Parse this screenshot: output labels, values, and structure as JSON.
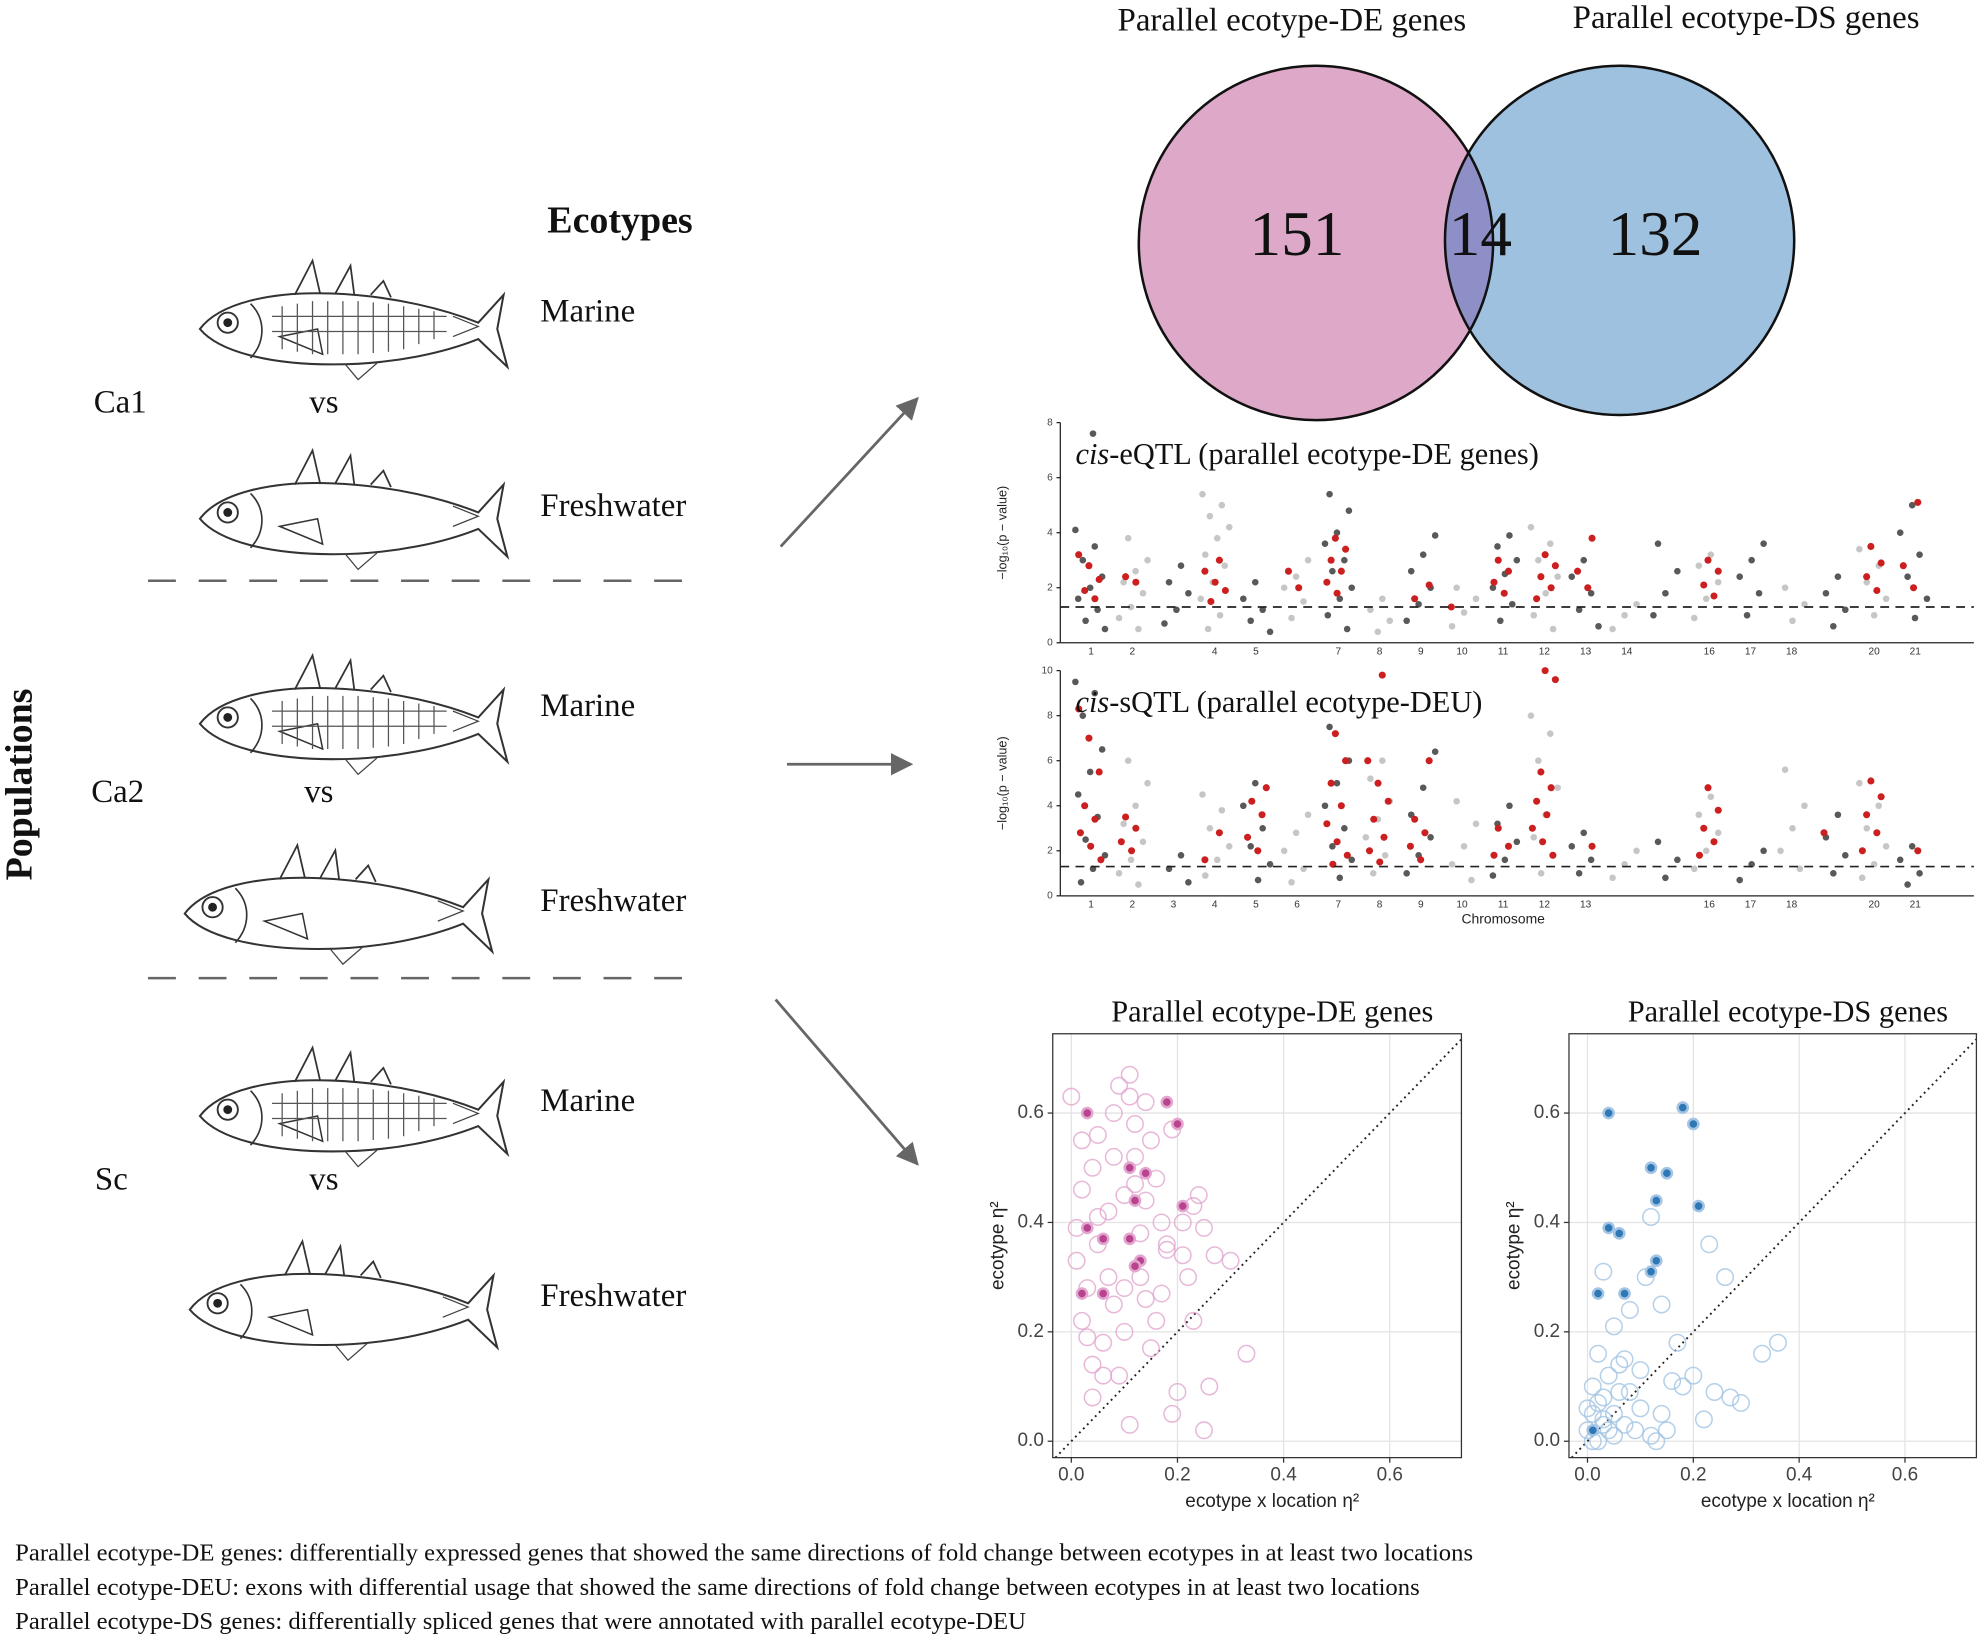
{
  "diagram": {
    "ecotypes_title": "Ecotypes",
    "populations_title": "Populations",
    "rows": [
      {
        "population": "Ca1",
        "vs": "vs",
        "marine": "Marine",
        "freshwater": "Freshwater"
      },
      {
        "population": "Ca2",
        "vs": "vs",
        "marine": "Marine",
        "freshwater": "Freshwater"
      },
      {
        "population": "Sc",
        "vs": "vs",
        "marine": "Marine",
        "freshwater": "Freshwater"
      }
    ]
  },
  "venn": {
    "left_label": "Parallel ecotype-DE genes",
    "right_label": "Parallel ecotype-DS genes",
    "left_only": 151,
    "overlap": 14,
    "right_only": 132
  },
  "chart_data": [
    {
      "type": "manhattan",
      "title_prefix": "cis",
      "title": "-eQTL (parallel ecotype-DE genes)",
      "y_label": "−log₁₀(p − value)",
      "categories": [
        "1",
        "2",
        null,
        "4",
        "5",
        null,
        "7",
        "8",
        "9",
        "10",
        "11",
        "12",
        "13",
        "14",
        null,
        "16",
        "17",
        "18",
        null,
        "20",
        "21"
      ],
      "values": [
        [
          4.1,
          3.5,
          3.0,
          2.4,
          2.0,
          1.6,
          1.2,
          0.8,
          0.5,
          7.6
        ],
        [
          3.8,
          3.0,
          2.6,
          2.2,
          1.8,
          1.3,
          0.9,
          0.5
        ],
        [
          2.8,
          2.2,
          1.8,
          1.2,
          0.7
        ],
        [
          5.4,
          5.0,
          4.6,
          4.2,
          3.8,
          3.2,
          2.8,
          2.2,
          1.6,
          1.0,
          0.5
        ],
        [
          2.2,
          1.6,
          1.2,
          0.8,
          0.4
        ],
        [
          3.0,
          2.4,
          2.0,
          1.5,
          0.9
        ],
        [
          5.4,
          4.8,
          4.0,
          3.6,
          3.0,
          2.6,
          2.0,
          1.6,
          1.0,
          0.5
        ],
        [
          1.6,
          1.2,
          0.8,
          0.4
        ],
        [
          3.9,
          3.2,
          2.6,
          2.0,
          1.4,
          0.8
        ],
        [
          2.0,
          1.6,
          1.1,
          0.6
        ],
        [
          3.9,
          3.5,
          3.0,
          2.5,
          2.0,
          1.4,
          0.8
        ],
        [
          4.2,
          3.6,
          3.0,
          2.4,
          1.8,
          1.0,
          0.5
        ],
        [
          3.0,
          2.4,
          1.8,
          1.2,
          0.6
        ],
        [
          1.4,
          1.0,
          0.5
        ],
        [
          3.6,
          2.6,
          1.8,
          1.0
        ],
        [
          3.2,
          2.8,
          2.2,
          1.6,
          0.9
        ],
        [
          3.6,
          3.0,
          2.4,
          1.8,
          1.0
        ],
        [
          2.0,
          1.4,
          0.8
        ],
        [
          2.4,
          1.8,
          1.2,
          0.6
        ],
        [
          3.4,
          2.8,
          2.2,
          1.6,
          1.0
        ],
        [
          5.0,
          4.0,
          3.2,
          2.4,
          1.6,
          0.9
        ]
      ],
      "highlight_values": [
        [
          3.2,
          2.8,
          2.3,
          1.9,
          1.6
        ],
        [
          2.4,
          2.2
        ],
        [],
        [
          3.0,
          2.6,
          2.2,
          1.9,
          1.5
        ],
        [],
        [
          2.6,
          2.0
        ],
        [
          3.8,
          3.4,
          3.0,
          2.6,
          2.2,
          1.8
        ],
        [],
        [
          2.1,
          1.6
        ],
        [
          1.3
        ],
        [
          3.0,
          2.6,
          2.2,
          1.8
        ],
        [
          3.2,
          2.8,
          2.4,
          2.0,
          1.6
        ],
        [
          3.8,
          2.6,
          2.0
        ],
        [],
        [],
        [
          3.0,
          2.6,
          2.1,
          1.7
        ],
        [],
        [],
        [],
        [
          3.5,
          2.9,
          2.4,
          1.9
        ],
        [
          5.1,
          2.8,
          2.0
        ]
      ],
      "colors": [
        "#595959",
        "#c6c6c6"
      ],
      "highlight_color": "#cc1f1f",
      "threshold": 1.3,
      "ylim": [
        0,
        8
      ],
      "yticks": [
        0,
        2,
        4,
        6,
        8
      ]
    },
    {
      "type": "manhattan",
      "title_prefix": "cis",
      "title": "-sQTL (parallel ecotype-DEU)",
      "y_label": "−log₁₀(p − value)",
      "x_label": "Chromosome",
      "categories": [
        "1",
        "2",
        "3",
        "4",
        "5",
        "6",
        "7",
        "8",
        "9",
        "10",
        "11",
        "12",
        "13",
        null,
        null,
        "16",
        "17",
        "18",
        null,
        "20",
        "21"
      ],
      "values": [
        [
          9.5,
          9.0,
          8.0,
          6.5,
          5.5,
          4.5,
          3.5,
          2.5,
          1.8,
          1.2,
          0.6
        ],
        [
          6.0,
          5.0,
          4.0,
          3.2,
          2.4,
          1.6,
          1.0,
          0.5
        ],
        [
          1.8,
          1.2,
          0.6
        ],
        [
          4.5,
          3.8,
          3.0,
          2.2,
          1.6,
          0.9
        ],
        [
          5.0,
          4.0,
          3.0,
          2.2,
          1.4,
          0.7
        ],
        [
          3.6,
          2.8,
          2.0,
          1.2,
          0.6
        ],
        [
          7.5,
          6.0,
          5.0,
          4.0,
          3.0,
          2.2,
          1.6,
          0.8
        ],
        [
          6.0,
          5.2,
          4.2,
          3.4,
          2.6,
          1.8,
          1.0
        ],
        [
          6.4,
          4.8,
          3.6,
          2.6,
          1.8,
          1.0
        ],
        [
          4.2,
          3.2,
          2.2,
          1.4,
          0.7
        ],
        [
          4.0,
          3.2,
          2.4,
          1.6,
          0.9
        ],
        [
          8.0,
          7.2,
          6.0,
          4.8,
          3.6,
          2.6,
          1.8,
          1.0
        ],
        [
          2.8,
          2.2,
          1.6,
          1.0
        ],
        [
          2.0,
          1.4,
          0.8
        ],
        [
          2.4,
          1.6,
          0.8
        ],
        [
          4.4,
          3.6,
          2.8,
          2.0,
          1.2
        ],
        [
          2.0,
          1.4,
          0.7
        ],
        [
          5.6,
          4.0,
          3.0,
          2.0,
          1.2
        ],
        [
          3.6,
          2.6,
          1.8,
          1.0
        ],
        [
          5.0,
          4.0,
          3.0,
          2.2,
          1.4,
          0.8
        ],
        [
          2.2,
          1.6,
          1.0,
          0.5
        ]
      ],
      "highlight_values": [
        [
          8.3,
          7.0,
          5.5,
          4.0,
          3.4,
          2.8,
          2.2,
          1.6
        ],
        [
          3.5,
          3.0,
          2.4,
          2.0
        ],
        [],
        [
          2.8,
          1.6
        ],
        [
          4.8,
          4.2,
          3.6,
          2.6,
          2.0
        ],
        [],
        [
          7.2,
          6.0,
          5.0,
          4.0,
          3.2,
          2.4,
          1.8,
          1.4
        ],
        [
          9.8,
          6.0,
          5.0,
          4.2,
          3.4,
          2.6,
          2.0,
          1.5
        ],
        [
          6.0,
          3.4,
          2.8,
          2.2,
          1.6
        ],
        [],
        [
          3.0,
          2.2,
          1.8
        ],
        [
          10.0,
          9.6,
          5.5,
          4.8,
          4.2,
          3.6,
          3.0,
          2.4,
          1.8
        ],
        [
          2.2
        ],
        [],
        [],
        [
          4.8,
          3.8,
          3.0,
          2.4,
          1.8
        ],
        [],
        [],
        [
          2.8
        ],
        [
          5.1,
          4.4,
          3.6,
          2.8,
          2.0
        ],
        [
          2.0
        ]
      ],
      "colors": [
        "#595959",
        "#c6c6c6"
      ],
      "highlight_color": "#cc1f1f",
      "threshold": 1.3,
      "ylim": [
        0,
        10
      ],
      "yticks": [
        0,
        2,
        4,
        6,
        8,
        10
      ]
    },
    {
      "type": "scatter",
      "title": "Parallel ecotype-DE genes",
      "x_label": "ecotype x location  η²",
      "y_label": "ecotype  η²",
      "x": [
        0.0,
        0.01,
        0.02,
        0.03,
        0.04,
        0.05,
        0.06,
        0.07,
        0.08,
        0.09,
        0.1,
        0.11,
        0.12,
        0.13,
        0.14,
        0.15,
        0.16,
        0.17,
        0.18,
        0.19,
        0.2,
        0.21,
        0.22,
        0.23,
        0.24,
        0.25,
        0.26,
        0.27,
        0.3,
        0.33,
        0.01,
        0.02,
        0.04,
        0.05,
        0.06,
        0.08,
        0.09,
        0.1,
        0.11,
        0.12,
        0.13,
        0.14,
        0.15,
        0.17,
        0.19,
        0.21,
        0.23,
        0.08,
        0.1,
        0.02,
        0.04,
        0.07,
        0.12,
        0.16,
        0.25,
        0.11,
        0.05,
        0.18,
        0.03,
        0.14
      ],
      "y": [
        0.63,
        0.39,
        0.22,
        0.28,
        0.5,
        0.56,
        0.18,
        0.42,
        0.6,
        0.12,
        0.45,
        0.67,
        0.52,
        0.38,
        0.62,
        0.55,
        0.48,
        0.27,
        0.35,
        0.57,
        0.09,
        0.4,
        0.3,
        0.22,
        0.45,
        0.39,
        0.1,
        0.34,
        0.33,
        0.16,
        0.33,
        0.46,
        0.08,
        0.36,
        0.12,
        0.25,
        0.65,
        0.2,
        0.03,
        0.58,
        0.3,
        0.44,
        0.17,
        0.4,
        0.05,
        0.34,
        0.43,
        0.52,
        0.28,
        0.55,
        0.14,
        0.3,
        0.47,
        0.22,
        0.02,
        0.63,
        0.41,
        0.36,
        0.19,
        0.26
      ],
      "highlight_x": [
        0.03,
        0.18,
        0.2,
        0.14,
        0.11,
        0.12,
        0.21,
        0.03,
        0.06,
        0.11,
        0.13,
        0.12,
        0.02,
        0.06
      ],
      "highlight_y": [
        0.6,
        0.62,
        0.58,
        0.49,
        0.5,
        0.44,
        0.43,
        0.39,
        0.37,
        0.37,
        0.33,
        0.32,
        0.27,
        0.27
      ],
      "color": "#e2a6cf",
      "highlight_color": "#b8448f",
      "xlim": [
        -0.035,
        0.735
      ],
      "ylim": [
        -0.03,
        0.745
      ],
      "xticks": [
        {
          "value": 0,
          "label": "0.0"
        },
        0.2,
        0.4,
        0.6
      ],
      "yticks": [
        {
          "value": 0,
          "label": "0.0"
        },
        0.2,
        0.4,
        0.6
      ],
      "grid": true
    },
    {
      "type": "scatter",
      "title": "Parallel ecotype-DS genes",
      "x_label": "ecotype x location  η²",
      "y_label": "ecotype  η²",
      "x": [
        0.0,
        0.01,
        0.01,
        0.02,
        0.02,
        0.03,
        0.03,
        0.04,
        0.05,
        0.05,
        0.06,
        0.07,
        0.08,
        0.09,
        0.1,
        0.12,
        0.14,
        0.16,
        0.17,
        0.2,
        0.22,
        0.24,
        0.27,
        0.29,
        0.33,
        0.36,
        0.26,
        0.03,
        0.08,
        0.11,
        0.12,
        0.14,
        0.23,
        0.02,
        0.04,
        0.06,
        0.0,
        0.01,
        0.03,
        0.07,
        0.15,
        0.18,
        0.1,
        0.05,
        0.13
      ],
      "y": [
        0.02,
        0.05,
        0.1,
        0.0,
        0.16,
        0.03,
        0.08,
        0.12,
        0.01,
        0.05,
        0.14,
        0.03,
        0.09,
        0.02,
        0.06,
        0.01,
        0.05,
        0.11,
        0.18,
        0.12,
        0.04,
        0.09,
        0.08,
        0.07,
        0.16,
        0.18,
        0.3,
        0.31,
        0.24,
        0.3,
        0.41,
        0.25,
        0.36,
        0.07,
        0.02,
        0.09,
        0.06,
        0.0,
        0.04,
        0.15,
        0.02,
        0.1,
        0.13,
        0.21,
        0.0
      ],
      "highlight_x": [
        0.04,
        0.18,
        0.2,
        0.12,
        0.15,
        0.13,
        0.21,
        0.04,
        0.06,
        0.13,
        0.12,
        0.02,
        0.07,
        0.01
      ],
      "highlight_y": [
        0.6,
        0.61,
        0.58,
        0.5,
        0.49,
        0.44,
        0.43,
        0.39,
        0.38,
        0.33,
        0.31,
        0.27,
        0.27,
        0.02
      ],
      "color": "#a3c4e4",
      "highlight_color": "#2f78b6",
      "xlim": [
        -0.035,
        0.735
      ],
      "ylim": [
        -0.03,
        0.745
      ],
      "xticks": [
        {
          "value": 0,
          "label": "0.0"
        },
        0.2,
        0.4,
        0.6
      ],
      "yticks": [
        {
          "value": 0,
          "label": "0.0"
        },
        0.2,
        0.4,
        0.6
      ],
      "grid": true
    }
  ],
  "footnotes": [
    "Parallel ecotype-DE genes: differentially expressed genes that showed the same directions of fold change between ecotypes in at least two locations",
    "Parallel ecotype-DEU: exons with differential usage that showed the same directions of fold change between ecotypes in at least two locations",
    "Parallel ecotype-DS genes: differentially spliced genes that were annotated with parallel ecotype-DEU"
  ]
}
